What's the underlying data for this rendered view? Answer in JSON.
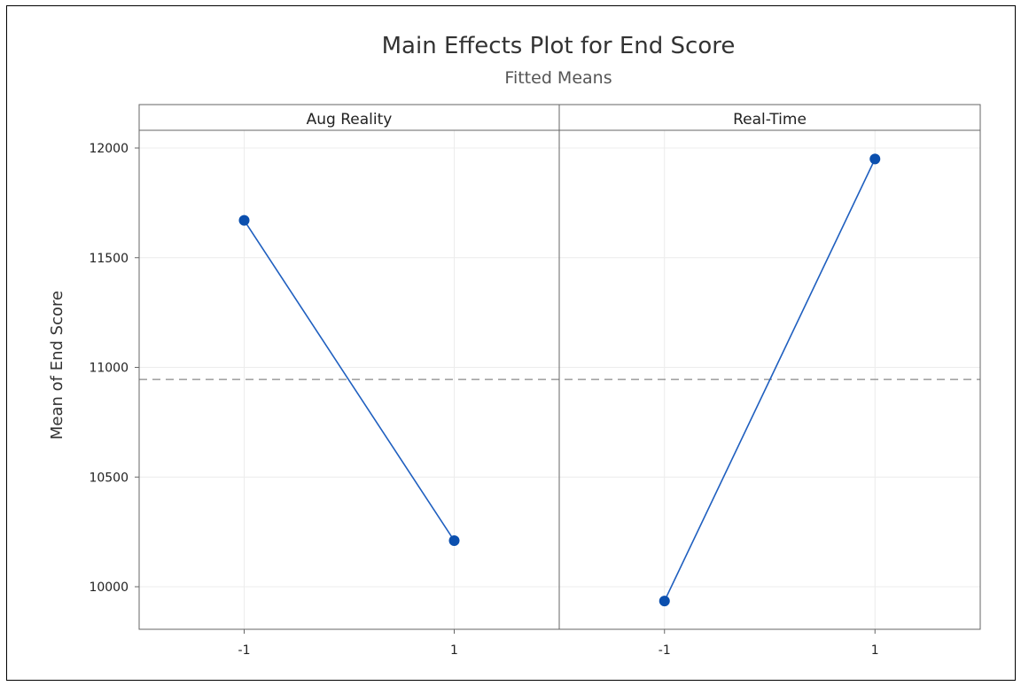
{
  "chart_data": {
    "type": "line",
    "title": "Main Effects Plot for End Score",
    "subtitle": "Fitted Means",
    "ylabel": "Mean of End Score",
    "xlabel": "",
    "ylim": [
      9800,
      12200
    ],
    "yticks": [
      10000,
      10500,
      11000,
      11500,
      12000
    ],
    "reference_line": 10945,
    "grid": true,
    "panels": [
      {
        "name": "Aug Reality",
        "categories": [
          "-1",
          "1"
        ],
        "values": [
          11670,
          10210
        ]
      },
      {
        "name": "Real-Time",
        "categories": [
          "-1",
          "1"
        ],
        "values": [
          9935,
          11950
        ]
      }
    ],
    "colors": {
      "series": "#1f5fbf",
      "marker": "#0b4fae",
      "reference": "#888888",
      "grid": "#ececec"
    }
  }
}
